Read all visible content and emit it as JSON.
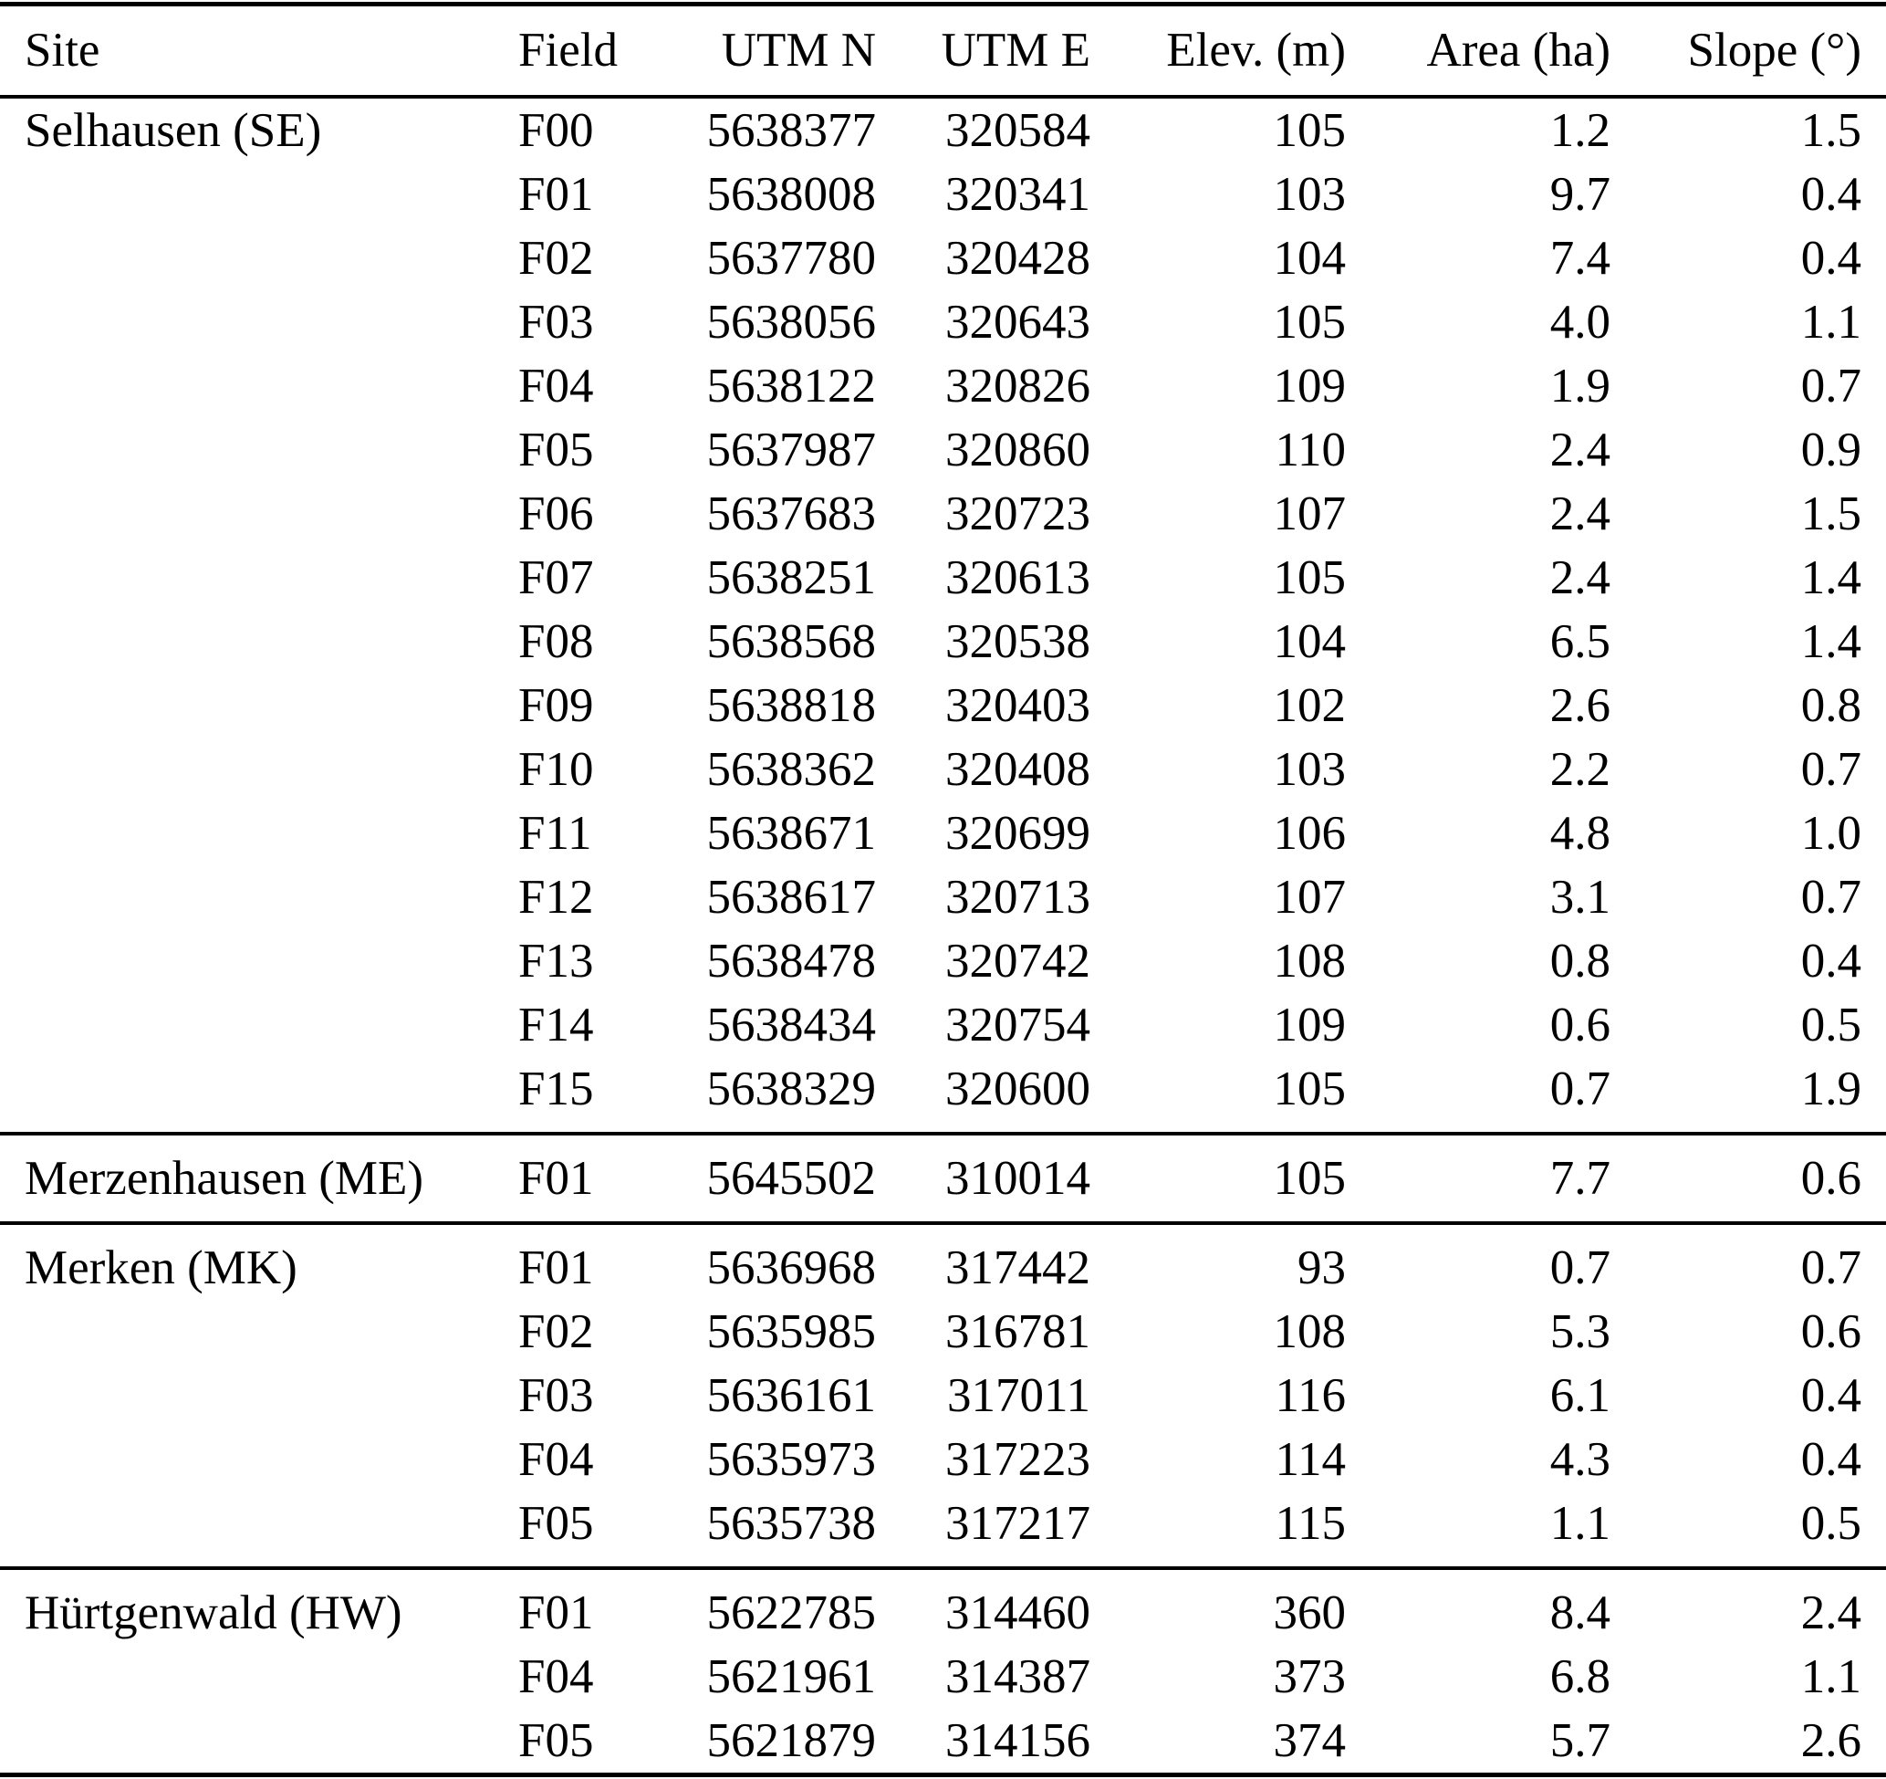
{
  "colors": {
    "text": "#000000",
    "background": "#ffffff",
    "rule": "#000000"
  },
  "table": {
    "columns": [
      {
        "key": "site",
        "label": "Site",
        "align": "left"
      },
      {
        "key": "field",
        "label": "Field",
        "align": "left"
      },
      {
        "key": "utm_n",
        "label": "UTM N",
        "align": "right"
      },
      {
        "key": "utm_e",
        "label": "UTM E",
        "align": "right"
      },
      {
        "key": "elev",
        "label": "Elev. (m)",
        "align": "right"
      },
      {
        "key": "area",
        "label": "Area (ha)",
        "align": "right"
      },
      {
        "key": "slope",
        "label": "Slope (°)",
        "align": "right"
      }
    ],
    "sections": [
      {
        "site": "Selhausen (SE)",
        "rows": [
          {
            "field": "F00",
            "utm_n": "5638377",
            "utm_e": "320584",
            "elev": "105",
            "area": "1.2",
            "slope": "1.5"
          },
          {
            "field": "F01",
            "utm_n": "5638008",
            "utm_e": "320341",
            "elev": "103",
            "area": "9.7",
            "slope": "0.4"
          },
          {
            "field": "F02",
            "utm_n": "5637780",
            "utm_e": "320428",
            "elev": "104",
            "area": "7.4",
            "slope": "0.4"
          },
          {
            "field": "F03",
            "utm_n": "5638056",
            "utm_e": "320643",
            "elev": "105",
            "area": "4.0",
            "slope": "1.1"
          },
          {
            "field": "F04",
            "utm_n": "5638122",
            "utm_e": "320826",
            "elev": "109",
            "area": "1.9",
            "slope": "0.7"
          },
          {
            "field": "F05",
            "utm_n": "5637987",
            "utm_e": "320860",
            "elev": "110",
            "area": "2.4",
            "slope": "0.9"
          },
          {
            "field": "F06",
            "utm_n": "5637683",
            "utm_e": "320723",
            "elev": "107",
            "area": "2.4",
            "slope": "1.5"
          },
          {
            "field": "F07",
            "utm_n": "5638251",
            "utm_e": "320613",
            "elev": "105",
            "area": "2.4",
            "slope": "1.4"
          },
          {
            "field": "F08",
            "utm_n": "5638568",
            "utm_e": "320538",
            "elev": "104",
            "area": "6.5",
            "slope": "1.4"
          },
          {
            "field": "F09",
            "utm_n": "5638818",
            "utm_e": "320403",
            "elev": "102",
            "area": "2.6",
            "slope": "0.8"
          },
          {
            "field": "F10",
            "utm_n": "5638362",
            "utm_e": "320408",
            "elev": "103",
            "area": "2.2",
            "slope": "0.7"
          },
          {
            "field": "F11",
            "utm_n": "5638671",
            "utm_e": "320699",
            "elev": "106",
            "area": "4.8",
            "slope": "1.0"
          },
          {
            "field": "F12",
            "utm_n": "5638617",
            "utm_e": "320713",
            "elev": "107",
            "area": "3.1",
            "slope": "0.7"
          },
          {
            "field": "F13",
            "utm_n": "5638478",
            "utm_e": "320742",
            "elev": "108",
            "area": "0.8",
            "slope": "0.4"
          },
          {
            "field": "F14",
            "utm_n": "5638434",
            "utm_e": "320754",
            "elev": "109",
            "area": "0.6",
            "slope": "0.5"
          },
          {
            "field": "F15",
            "utm_n": "5638329",
            "utm_e": "320600",
            "elev": "105",
            "area": "0.7",
            "slope": "1.9"
          }
        ]
      },
      {
        "site": "Merzenhausen (ME)",
        "rows": [
          {
            "field": "F01",
            "utm_n": "5645502",
            "utm_e": "310014",
            "elev": "105",
            "area": "7.7",
            "slope": "0.6"
          }
        ]
      },
      {
        "site": "Merken (MK)",
        "rows": [
          {
            "field": "F01",
            "utm_n": "5636968",
            "utm_e": "317442",
            "elev": "93",
            "area": "0.7",
            "slope": "0.7"
          },
          {
            "field": "F02",
            "utm_n": "5635985",
            "utm_e": "316781",
            "elev": "108",
            "area": "5.3",
            "slope": "0.6"
          },
          {
            "field": "F03",
            "utm_n": "5636161",
            "utm_e": "317011",
            "elev": "116",
            "area": "6.1",
            "slope": "0.4"
          },
          {
            "field": "F04",
            "utm_n": "5635973",
            "utm_e": "317223",
            "elev": "114",
            "area": "4.3",
            "slope": "0.4"
          },
          {
            "field": "F05",
            "utm_n": "5635738",
            "utm_e": "317217",
            "elev": "115",
            "area": "1.1",
            "slope": "0.5"
          }
        ]
      },
      {
        "site": "Hürtgenwald (HW)",
        "rows": [
          {
            "field": "F01",
            "utm_n": "5622785",
            "utm_e": "314460",
            "elev": "360",
            "area": "8.4",
            "slope": "2.4"
          },
          {
            "field": "F04",
            "utm_n": "5621961",
            "utm_e": "314387",
            "elev": "373",
            "area": "6.8",
            "slope": "1.1"
          },
          {
            "field": "F05",
            "utm_n": "5621879",
            "utm_e": "314156",
            "elev": "374",
            "area": "5.7",
            "slope": "2.6"
          }
        ]
      }
    ]
  }
}
